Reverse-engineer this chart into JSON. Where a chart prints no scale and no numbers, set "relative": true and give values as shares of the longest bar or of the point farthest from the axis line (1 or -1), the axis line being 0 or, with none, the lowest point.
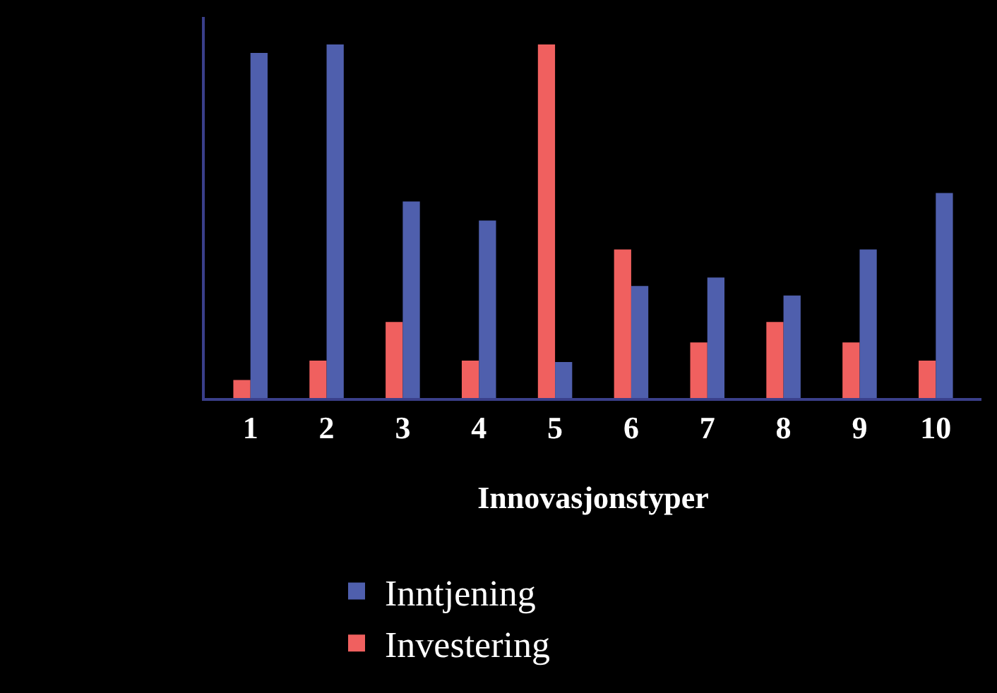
{
  "chart_data": {
    "type": "bar",
    "relative": true,
    "xlabel": "Innovasjonstyper",
    "categories": [
      "1",
      "2",
      "3",
      "4",
      "5",
      "6",
      "7",
      "8",
      "9",
      "10"
    ],
    "legend": "bottom",
    "grid": false,
    "series": [
      {
        "name": "Investering",
        "color": "#f0605f",
        "values": [
          0.051,
          0.106,
          0.215,
          0.106,
          1.0,
          0.42,
          0.157,
          0.215,
          0.157,
          0.106
        ]
      },
      {
        "name": "Inntjening",
        "color": "#4f5fad",
        "values": [
          0.976,
          1.0,
          0.556,
          0.502,
          0.102,
          0.317,
          0.341,
          0.29,
          0.42,
          0.58
        ]
      }
    ]
  }
}
